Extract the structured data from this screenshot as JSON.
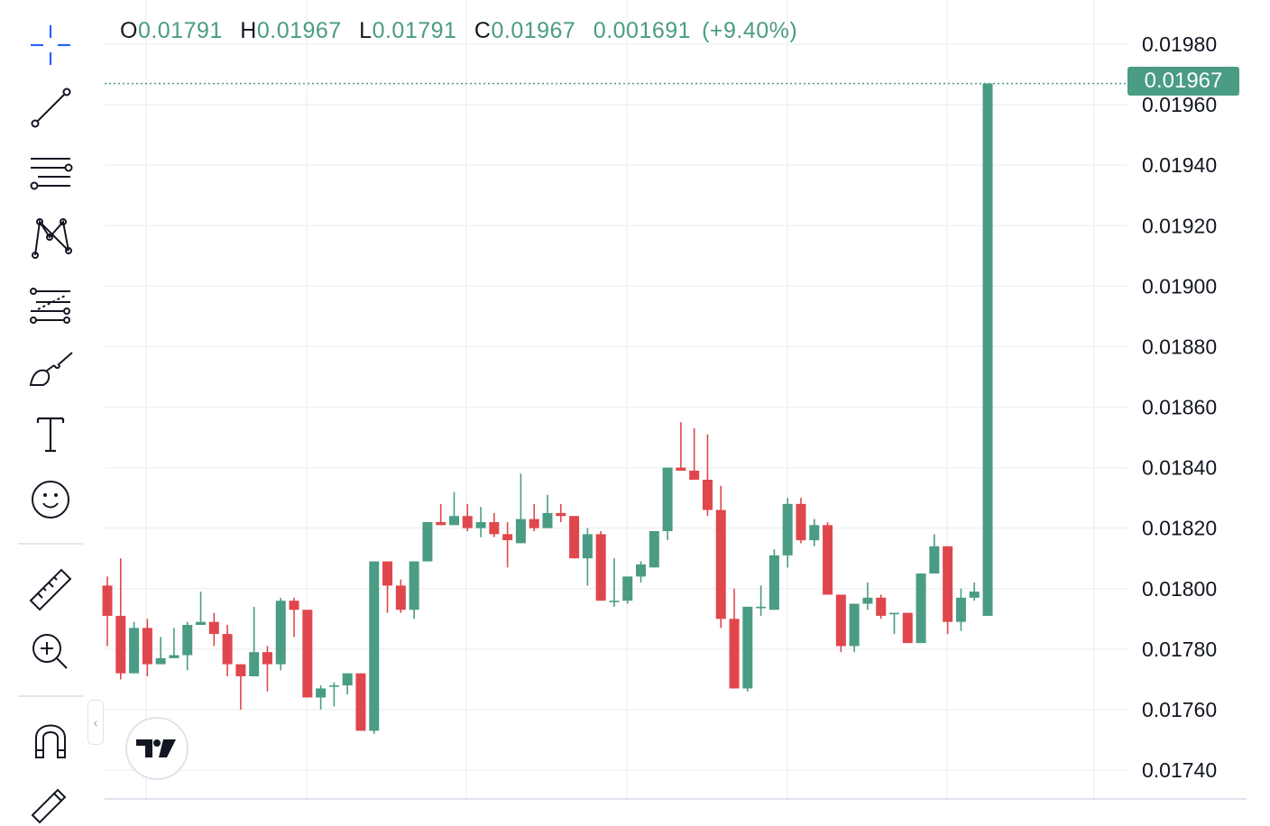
{
  "legend": {
    "open_label": "O",
    "open": "0.01791",
    "high_label": "H",
    "high": "0.01967",
    "low_label": "L",
    "low": "0.01791",
    "close_label": "C",
    "close": "0.01967",
    "change": "0.001691",
    "change_pct": "(+9.40%)"
  },
  "last_price_label": "0.01967",
  "colors": {
    "up": "#4a9c84",
    "down": "#e0474c",
    "grid": "#f0f1f3",
    "text": "#131722"
  },
  "toolbar": {
    "icons": [
      "crosshair-icon",
      "trend-line-icon",
      "horizontal-lines-icon",
      "pattern-icon",
      "fib-retracement-icon",
      "brush-icon",
      "text-icon",
      "emoji-icon",
      "ruler-icon",
      "zoom-in-icon",
      "magnet-icon",
      "pencil-icon"
    ],
    "collapse_glyph": "‹"
  },
  "logo_text": "TV",
  "chart_data": {
    "type": "candlestick",
    "ylim": [
      0.0173,
      0.01993
    ],
    "y_ticks": [
      "0.01980",
      "0.01960",
      "0.01940",
      "0.01920",
      "0.01900",
      "0.01880",
      "0.01860",
      "0.01840",
      "0.01820",
      "0.01800",
      "0.01780",
      "0.01760",
      "0.01740"
    ],
    "last_price": 0.01967,
    "grid": true,
    "candles_ohlc": [
      [
        0.01801,
        0.01804,
        0.01781,
        0.01791
      ],
      [
        0.01791,
        0.0181,
        0.0177,
        0.01772
      ],
      [
        0.01772,
        0.01789,
        0.01772,
        0.01787
      ],
      [
        0.01787,
        0.0179,
        0.01771,
        0.01775
      ],
      [
        0.01775,
        0.01784,
        0.01775,
        0.01777
      ],
      [
        0.01777,
        0.01787,
        0.01777,
        0.01778
      ],
      [
        0.01778,
        0.01789,
        0.01773,
        0.01788
      ],
      [
        0.01788,
        0.01799,
        0.01788,
        0.01789
      ],
      [
        0.01789,
        0.01792,
        0.01781,
        0.01785
      ],
      [
        0.01785,
        0.01788,
        0.01771,
        0.01775
      ],
      [
        0.01775,
        0.01775,
        0.0176,
        0.01771
      ],
      [
        0.01771,
        0.01794,
        0.01771,
        0.01779
      ],
      [
        0.01779,
        0.01781,
        0.01766,
        0.01775
      ],
      [
        0.01775,
        0.01797,
        0.01773,
        0.01796
      ],
      [
        0.01796,
        0.01797,
        0.01784,
        0.01793
      ],
      [
        0.01793,
        0.01793,
        0.01764,
        0.01764
      ],
      [
        0.01764,
        0.01768,
        0.0176,
        0.01767
      ],
      [
        0.01768,
        0.01769,
        0.01761,
        0.01768
      ],
      [
        0.01768,
        0.01772,
        0.01765,
        0.01772
      ],
      [
        0.01772,
        0.01772,
        0.01753,
        0.01753
      ],
      [
        0.01753,
        0.01809,
        0.01752,
        0.01809
      ],
      [
        0.01809,
        0.01809,
        0.01792,
        0.01801
      ],
      [
        0.01801,
        0.01803,
        0.01792,
        0.01793
      ],
      [
        0.01793,
        0.01809,
        0.0179,
        0.01809
      ],
      [
        0.01809,
        0.01822,
        0.01809,
        0.01822
      ],
      [
        0.01822,
        0.01828,
        0.01821,
        0.01821
      ],
      [
        0.01821,
        0.01832,
        0.01821,
        0.01824
      ],
      [
        0.01824,
        0.01828,
        0.01819,
        0.0182
      ],
      [
        0.0182,
        0.01827,
        0.01817,
        0.01822
      ],
      [
        0.01822,
        0.01825,
        0.01817,
        0.01818
      ],
      [
        0.01818,
        0.01822,
        0.01807,
        0.01816
      ],
      [
        0.01815,
        0.01838,
        0.01815,
        0.01823
      ],
      [
        0.01823,
        0.01828,
        0.01819,
        0.0182
      ],
      [
        0.0182,
        0.01831,
        0.0182,
        0.01825
      ],
      [
        0.01825,
        0.01828,
        0.01822,
        0.01824
      ],
      [
        0.01824,
        0.01824,
        0.0181,
        0.0181
      ],
      [
        0.0181,
        0.0182,
        0.01801,
        0.01818
      ],
      [
        0.01818,
        0.01819,
        0.01796,
        0.01796
      ],
      [
        0.01796,
        0.0181,
        0.01794,
        0.01796
      ],
      [
        0.01796,
        0.01804,
        0.01795,
        0.01804
      ],
      [
        0.01804,
        0.01809,
        0.01802,
        0.01808
      ],
      [
        0.01807,
        0.01819,
        0.01807,
        0.01819
      ],
      [
        0.01819,
        0.0184,
        0.01816,
        0.0184
      ],
      [
        0.0184,
        0.01855,
        0.01839,
        0.01839
      ],
      [
        0.01839,
        0.01853,
        0.01836,
        0.01836
      ],
      [
        0.01836,
        0.01851,
        0.01824,
        0.01826
      ],
      [
        0.01826,
        0.01834,
        0.01787,
        0.0179
      ],
      [
        0.0179,
        0.018,
        0.01767,
        0.01767
      ],
      [
        0.01767,
        0.01794,
        0.01766,
        0.01794
      ],
      [
        0.01794,
        0.01801,
        0.01791,
        0.01794
      ],
      [
        0.01793,
        0.01813,
        0.01793,
        0.01811
      ],
      [
        0.01811,
        0.0183,
        0.01807,
        0.01828
      ],
      [
        0.01828,
        0.0183,
        0.01815,
        0.01816
      ],
      [
        0.01816,
        0.01823,
        0.01814,
        0.01821
      ],
      [
        0.01821,
        0.01822,
        0.01798,
        0.01798
      ],
      [
        0.01798,
        0.01798,
        0.01779,
        0.01781
      ],
      [
        0.01781,
        0.01795,
        0.01779,
        0.01795
      ],
      [
        0.01795,
        0.01802,
        0.01793,
        0.01797
      ],
      [
        0.01797,
        0.01798,
        0.0179,
        0.01791
      ],
      [
        0.01792,
        0.01792,
        0.01785,
        0.01792
      ],
      [
        0.01792,
        0.01792,
        0.01782,
        0.01782
      ],
      [
        0.01782,
        0.01805,
        0.01782,
        0.01805
      ],
      [
        0.01805,
        0.01818,
        0.01805,
        0.01814
      ],
      [
        0.01814,
        0.01814,
        0.01785,
        0.01789
      ],
      [
        0.01789,
        0.018,
        0.01786,
        0.01797
      ],
      [
        0.01797,
        0.01802,
        0.01796,
        0.01799
      ],
      [
        0.01791,
        0.01967,
        0.01791,
        0.01967
      ]
    ]
  }
}
